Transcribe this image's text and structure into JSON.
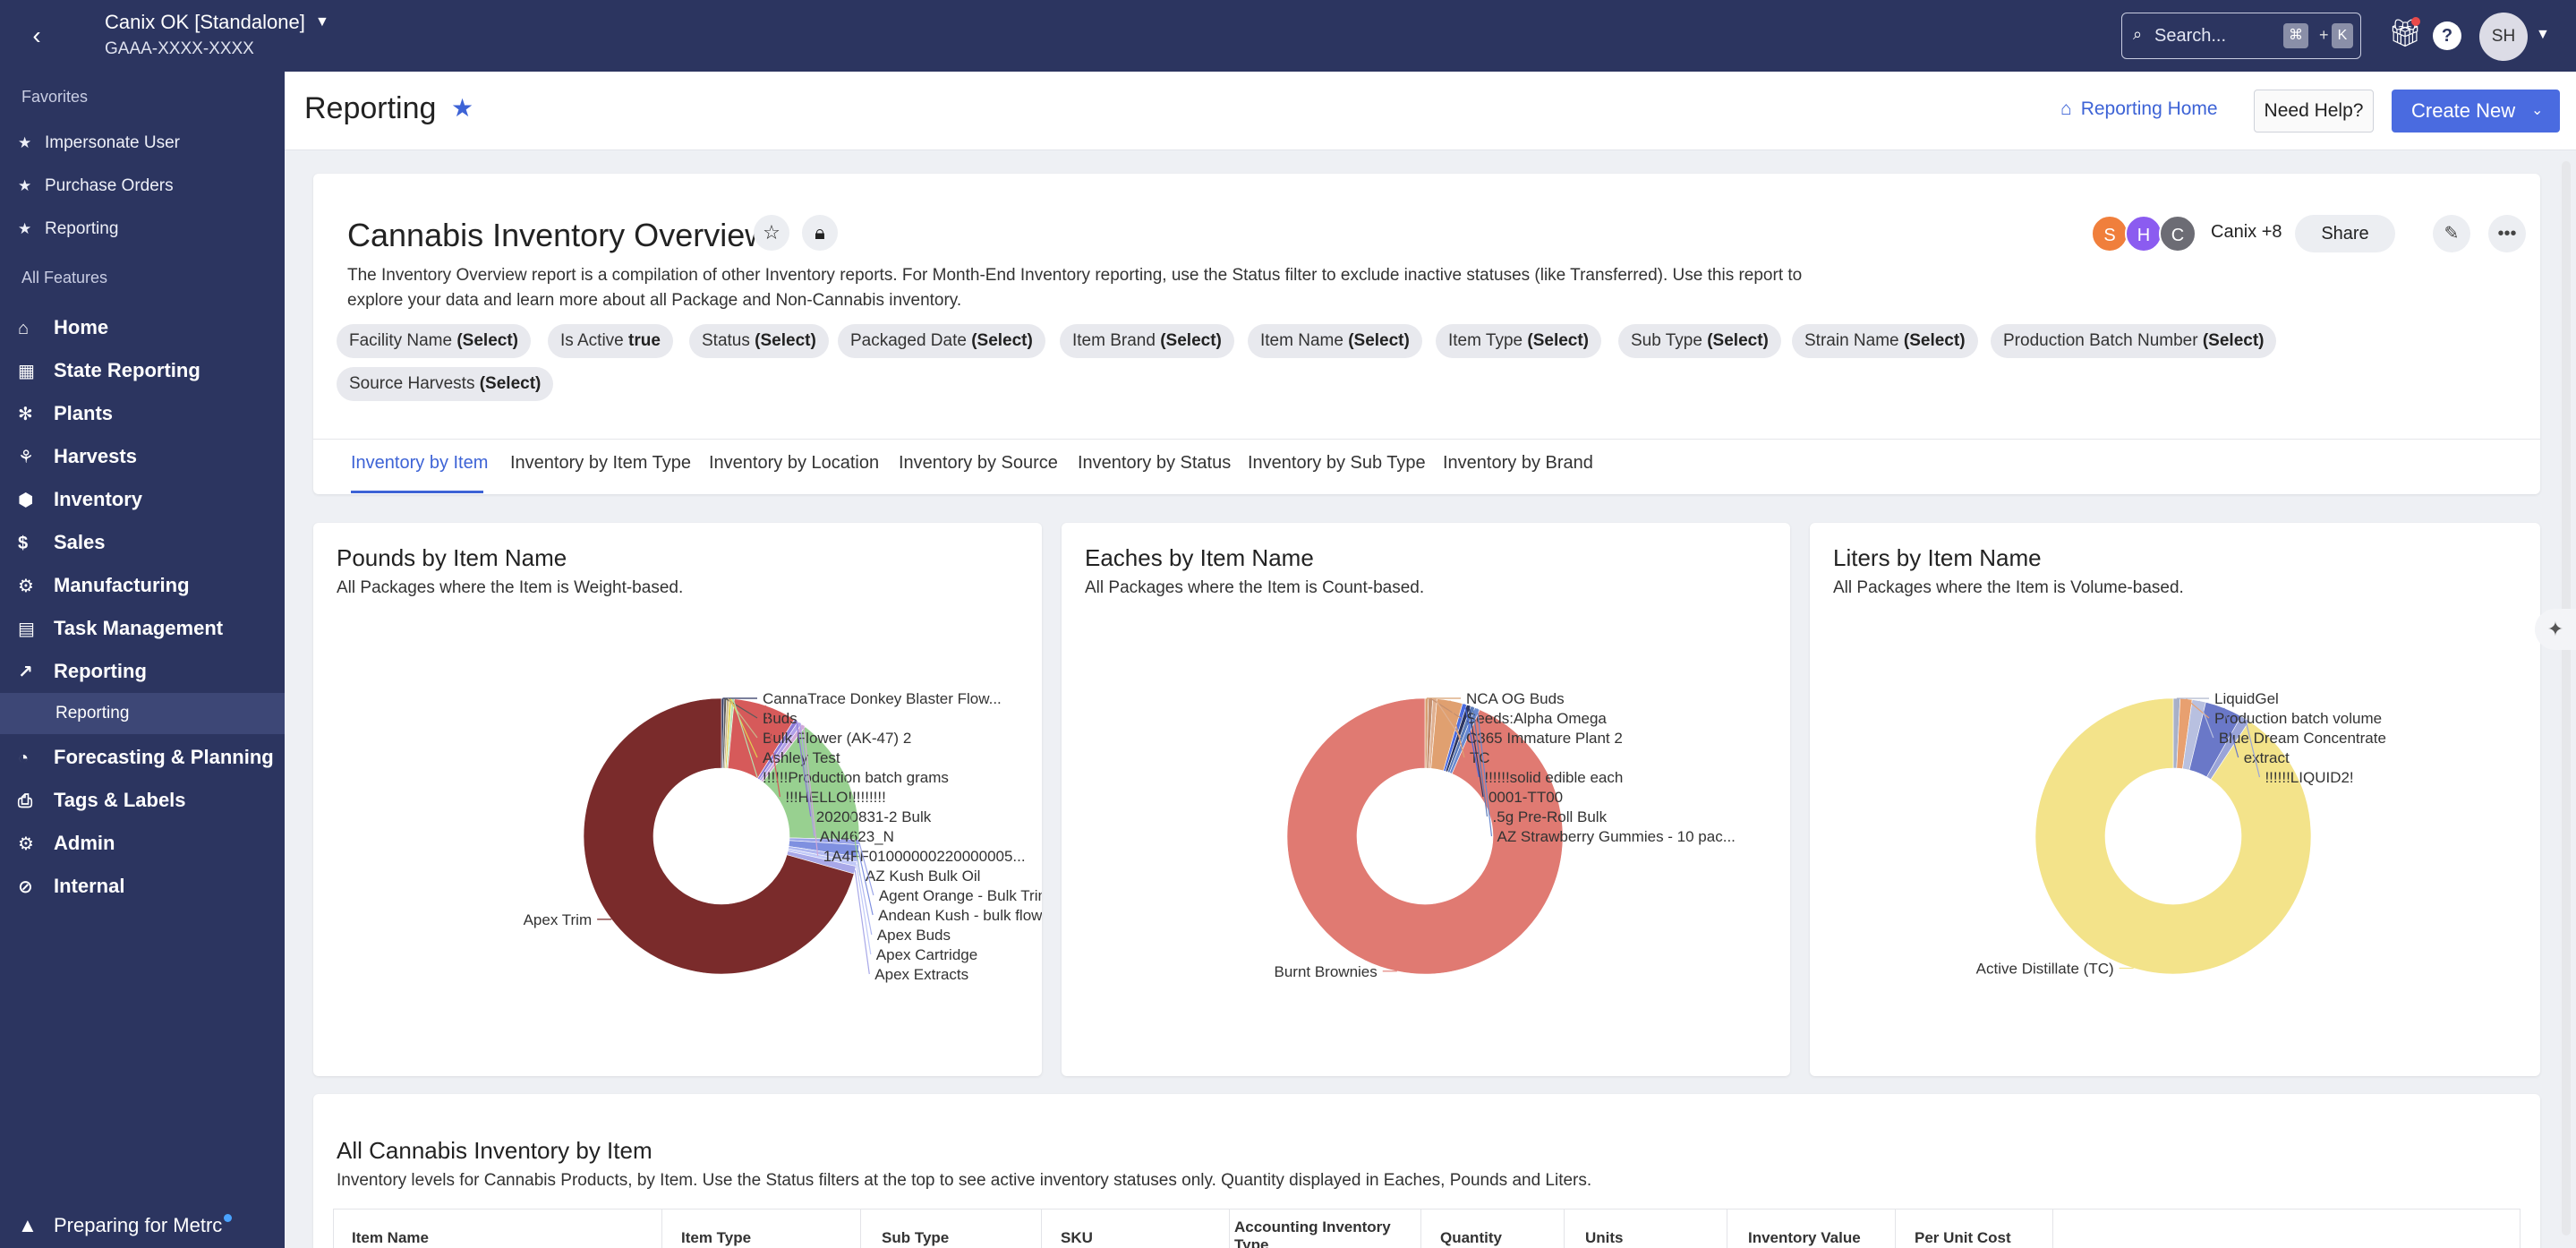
{
  "topbar": {
    "org_name": "Canix OK [Standalone]",
    "org_id": "GAAA-XXXX-XXXX",
    "search_placeholder": "Search...",
    "shortcut_mod": "⌘",
    "shortcut_plus": "+",
    "shortcut_key": "K",
    "help": "?",
    "user_initials": "SH"
  },
  "sidebar": {
    "favorites_label": "Favorites",
    "favorites": [
      "Impersonate User",
      "Purchase Orders",
      "Reporting"
    ],
    "all_features_label": "All Features",
    "items": [
      {
        "label": "Home",
        "icon": "home-icon"
      },
      {
        "label": "State Reporting",
        "icon": "calendar-icon"
      },
      {
        "label": "Plants",
        "icon": "plant-icon"
      },
      {
        "label": "Harvests",
        "icon": "harvest-icon"
      },
      {
        "label": "Inventory",
        "icon": "box-icon"
      },
      {
        "label": "Sales",
        "icon": "dollar-icon"
      },
      {
        "label": "Manufacturing",
        "icon": "gears-icon"
      },
      {
        "label": "Task Management",
        "icon": "clipboard-icon"
      },
      {
        "label": "Reporting",
        "icon": "chart-icon"
      },
      {
        "label": "Forecasting & Planning",
        "icon": "forecast-icon"
      },
      {
        "label": "Tags & Labels",
        "icon": "printer-icon"
      },
      {
        "label": "Admin",
        "icon": "gear-icon"
      },
      {
        "label": "Internal",
        "icon": "eye-slash-icon"
      }
    ],
    "active_sub": "Reporting",
    "bottom": "Preparing for Metrc"
  },
  "header": {
    "title": "Reporting",
    "reporting_home": "Reporting Home",
    "need_help": "Need Help?",
    "create_new": "Create New"
  },
  "overview": {
    "title": "Cannabis Inventory Overview",
    "description": "The Inventory Overview report is a compilation of other Inventory reports. For Month-End Inventory reporting, use the Status filter to exclude inactive statuses (like Transferred). Use this report to explore your data and learn more about all Package and Non-Cannabis inventory.",
    "collaborators": [
      "S",
      "H",
      "C"
    ],
    "collaborators_label": "Canix +8",
    "share": "Share",
    "filters": [
      {
        "name": "Facility Name",
        "value": "(Select)"
      },
      {
        "name": "Is Active",
        "value": "true"
      },
      {
        "name": "Status",
        "value": "(Select)"
      },
      {
        "name": "Packaged Date",
        "value": "(Select)"
      },
      {
        "name": "Item Brand",
        "value": "(Select)"
      },
      {
        "name": "Item Name",
        "value": "(Select)"
      },
      {
        "name": "Item Type",
        "value": "(Select)"
      },
      {
        "name": "Sub Type",
        "value": "(Select)"
      },
      {
        "name": "Strain Name",
        "value": "(Select)"
      },
      {
        "name": "Production Batch Number",
        "value": "(Select)"
      },
      {
        "name": "Source Harvests",
        "value": "(Select)"
      }
    ],
    "tabs": [
      "Inventory by Item",
      "Inventory by Item Type",
      "Inventory by Location",
      "Inventory by Source",
      "Inventory by Status",
      "Inventory by Sub Type",
      "Inventory by Brand"
    ],
    "active_tab": 0
  },
  "charts": {
    "pounds": {
      "title": "Pounds by Item Name",
      "subtitle": "All Packages where the Item is Weight-based."
    },
    "eaches": {
      "title": "Eaches by Item Name",
      "subtitle": "All Packages where the Item is Count-based."
    },
    "liters": {
      "title": "Liters by Item Name",
      "subtitle": "All Packages where the Item is Volume-based."
    }
  },
  "chart_data": [
    {
      "type": "pie",
      "title": "Pounds by Item Name",
      "labels": [
        "Apex Trim",
        "CannaTrace Donkey Blaster Flow...",
        "Buds",
        "Bulk Flower (AK-47) 2",
        "Ashley Test",
        "!!!!!!Production batch grams",
        "!!!HELLO!!!!!!!!!",
        "20200831-2 Bulk",
        "AN4623_N",
        "1A4FF01000000220000005...",
        "AZ Kush Bulk Oil",
        "Agent Orange - Bulk Trim",
        "Andean Kush - bulk flower",
        "Apex Buds",
        "Apex Cartridge",
        "Apex Extracts"
      ],
      "values": [
        70.6,
        0.3,
        0.3,
        0.3,
        0.3,
        0.3,
        7.4,
        0.5,
        0.5,
        0.5,
        15.0,
        0.6,
        1.4,
        0.6,
        0.5,
        0.9
      ],
      "colors": [
        "#7a2b2b",
        "#2c3560",
        "#5a5a5a",
        "#c9b58a",
        "#e0d050",
        "#b8e0b0",
        "#d65a5a",
        "#8c7ad8",
        "#b0a0e8",
        "#d0a8d8",
        "#98d090",
        "#9aa4e8",
        "#7f90e0",
        "#b0b8f0",
        "#c0c8f8",
        "#a8a8e8"
      ]
    },
    {
      "type": "pie",
      "title": "Eaches by Item Name",
      "labels": [
        "Burnt Brownies",
        "NCA OG Buds",
        "Seeds:Alpha Omega",
        "C365 Immature Plant 2",
        "TC",
        "!!!!!!solid edible each",
        "0001-TT00",
        ".5g Pre-Roll Bulk",
        "AZ Strawberry Gummies - 10 pac..."
      ],
      "values": [
        93.5,
        0.4,
        0.5,
        0.5,
        3.0,
        0.5,
        0.5,
        0.5,
        0.6
      ],
      "colors": [
        "#e07a72",
        "#d8a070",
        "#c49070",
        "#e0b090",
        "#e0a070",
        "#4a6be0",
        "#2c3560",
        "#5a7ab8",
        "#6a8ad0"
      ]
    },
    {
      "type": "pie",
      "title": "Liters by Item Name",
      "labels": [
        "Active Distillate (TC)",
        "LiquidGel",
        "Production batch volume",
        "Blue Dream Concentrate",
        "extract",
        "!!!!!!LIQUID2!"
      ],
      "values": [
        90.7,
        0.8,
        1.4,
        1.6,
        4.4,
        1.1
      ],
      "colors": [
        "#f3e38a",
        "#a8b0c8",
        "#e8a070",
        "#b8c0e0",
        "#6a78c8",
        "#9aa4d8"
      ]
    }
  ],
  "table": {
    "title": "All Cannabis Inventory by Item",
    "subtitle": "Inventory levels for Cannabis Products, by Item. Use the Status filters at the top to see active inventory statuses only. Quantity displayed in Eaches, Pounds and Liters.",
    "columns": [
      "Item Name",
      "Item Type",
      "Sub Type",
      "SKU",
      "Accounting Inventory Type",
      "Quantity",
      "Units",
      "Inventory Value",
      "Per Unit Cost"
    ]
  }
}
